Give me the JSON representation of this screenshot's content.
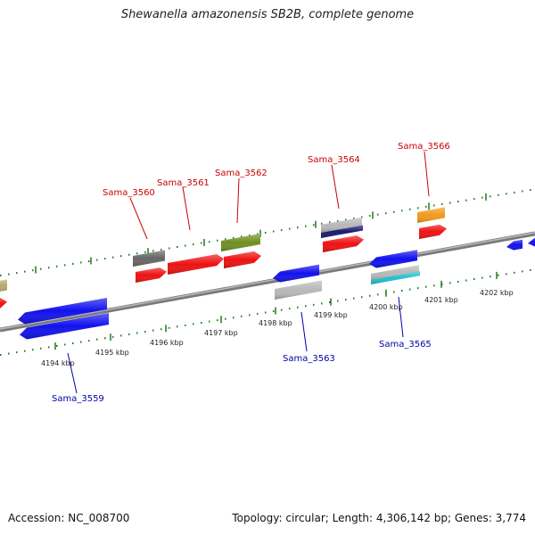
{
  "title": "Shewanella amazonensis SB2B, complete genome",
  "footer": {
    "accession": "Accession: NC_008700",
    "stats": "Topology: circular; Length: 4,306,142 bp; Genes: 3,774"
  },
  "ticks": [
    "4194 kbp",
    "4195 kbp",
    "4196 kbp",
    "4197 kbp",
    "4198 kbp",
    "4199 kbp",
    "4200 kbp",
    "4201 kbp",
    "4202 kbp"
  ],
  "colors": {
    "forward_label": "#cc0000",
    "reverse_label": "#0000aa",
    "red": "#ee1111",
    "blue": "#1111ee",
    "gray": "#666666",
    "olive": "#6f8f22",
    "navy": "#1a1a70",
    "silver": "#b8b8b8",
    "teal": "#20c0d0",
    "orange": "#f29a1a",
    "khaki": "#b3a96a",
    "backbone": "#8a8a8a",
    "tick": "#1a7a1a"
  },
  "forward_labels": [
    "Sama_3560",
    "Sama_3561",
    "Sama_3562",
    "Sama_3564",
    "Sama_3566"
  ],
  "reverse_labels": [
    "Sama_3559",
    "Sama_3563",
    "Sama_3565"
  ]
}
